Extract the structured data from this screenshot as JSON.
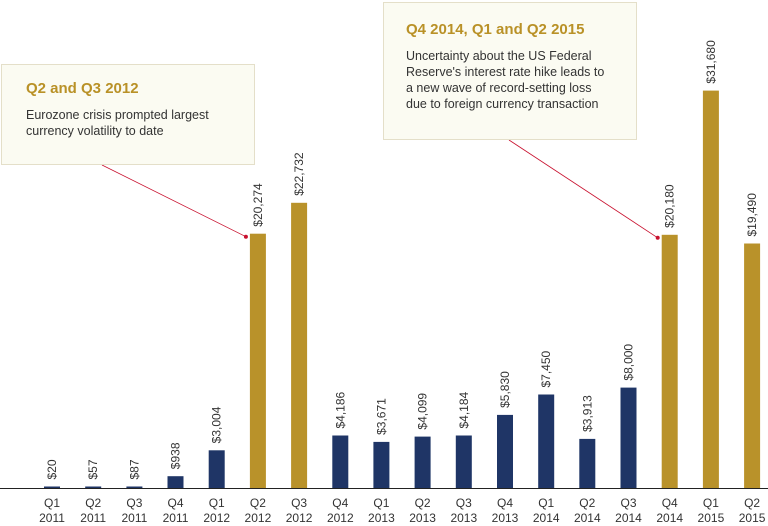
{
  "chart_data": {
    "type": "bar",
    "categories": [
      "Q1 2011",
      "Q2 2011",
      "Q3 2011",
      "Q4 2011",
      "Q1 2012",
      "Q2 2012",
      "Q3 2012",
      "Q4 2012",
      "Q1 2013",
      "Q2 2013",
      "Q3 2013",
      "Q4 2013",
      "Q1 2014",
      "Q2 2014",
      "Q3 2014",
      "Q4 2014",
      "Q1 2015",
      "Q2 2015"
    ],
    "tick_labels": [
      [
        "Q1",
        "2011"
      ],
      [
        "Q2",
        "2011"
      ],
      [
        "Q3",
        "2011"
      ],
      [
        "Q4",
        "2011"
      ],
      [
        "Q1",
        "2012"
      ],
      [
        "Q2",
        "2012"
      ],
      [
        "Q3",
        "2012"
      ],
      [
        "Q4",
        "2012"
      ],
      [
        "Q1",
        "2013"
      ],
      [
        "Q2",
        "2013"
      ],
      [
        "Q3",
        "2013"
      ],
      [
        "Q4",
        "2013"
      ],
      [
        "Q1",
        "2014"
      ],
      [
        "Q2",
        "2014"
      ],
      [
        "Q3",
        "2014"
      ],
      [
        "Q4",
        "2014"
      ],
      [
        "Q1",
        "2015"
      ],
      [
        "Q2",
        "2015"
      ]
    ],
    "values": [
      20,
      57,
      87,
      938,
      3004,
      20274,
      22732,
      4186,
      3671,
      4099,
      4184,
      5830,
      7450,
      3913,
      8000,
      20180,
      31680,
      19490
    ],
    "value_labels": [
      "$20",
      "$57",
      "$87",
      "$938",
      "$3,004",
      "$20,274",
      "$22,732",
      "$4,186",
      "$3,671",
      "$4,099",
      "$4,184",
      "$5,830",
      "$7,450",
      "$3,913",
      "$8,000",
      "$20,180",
      "$31,680",
      "$19,490"
    ],
    "highlighted": [
      5,
      6,
      15,
      16,
      17
    ],
    "ylim": [
      0,
      33000
    ],
    "grid": false,
    "title": "",
    "xlabel": "",
    "ylabel": ""
  },
  "colors": {
    "normal_bar": "#1f3566",
    "highlight_bar": "#b9922a",
    "callout_title": "#b99127",
    "connector": "#c8102e",
    "axis": "#222222",
    "text": "#333333"
  },
  "callouts": [
    {
      "title": "Q2 and Q3 2012",
      "body": "Eurozone crisis prompted largest currency volatility to date",
      "points_to": "Q2 2012"
    },
    {
      "title": "Q4 2014, Q1 and Q2 2015",
      "body": "Uncertainty about the US Federal Reserve's interest rate hike leads to a new wave of record-setting loss due to foreign currency transaction",
      "points_to": "Q4 2014"
    }
  ]
}
